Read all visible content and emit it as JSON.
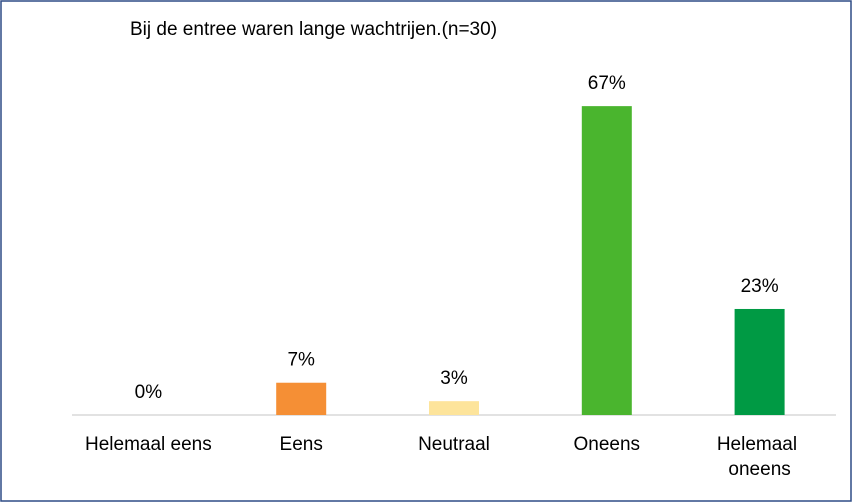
{
  "chart_data": {
    "type": "bar",
    "title": "Bij de entree waren lange wachtrijen.(n=30)",
    "categories": [
      "Helemaal eens",
      "Eens",
      "Neutraal",
      "Oneens",
      "Helemaal oneens"
    ],
    "values": [
      0,
      7,
      3,
      67,
      23
    ],
    "value_labels": [
      "0%",
      "7%",
      "3%",
      "67%",
      "23%"
    ],
    "colors": [
      "#e2412b",
      "#f58f35",
      "#fde49b",
      "#4ab52e",
      "#009a44"
    ]
  }
}
